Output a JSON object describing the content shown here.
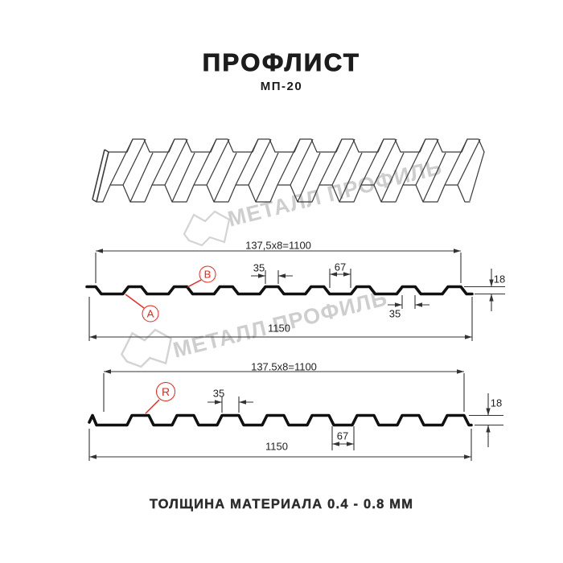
{
  "title": "ПРОФЛИСТ",
  "subtitle": "МП-20",
  "footer_note": "ТОЛЩИНА МАТЕРИАЛА 0.4 - 0.8 ММ",
  "watermark": {
    "text": "МЕТАЛЛ ПРОФИЛЬ",
    "color": "#c6c6c6"
  },
  "colors": {
    "accent_red": "#e8251d",
    "dim_line": "#333333",
    "profile_line": "#111111",
    "sheet_line": "#3c3c3c"
  },
  "diagram_top": {
    "marker_a": "A",
    "marker_b": "B",
    "dims": {
      "pitch_formula": "137,5x8=1100",
      "crest_width": "35",
      "valley_width": "67",
      "profile_height": "18",
      "crest_underside_width": "35",
      "overall_width": "1150"
    }
  },
  "diagram_bottom": {
    "marker_r": "R",
    "dims": {
      "pitch_formula": "137.5x8=1100",
      "crest_width": "35",
      "valley_width": "67",
      "profile_height": "18",
      "overall_width": "1150"
    }
  }
}
